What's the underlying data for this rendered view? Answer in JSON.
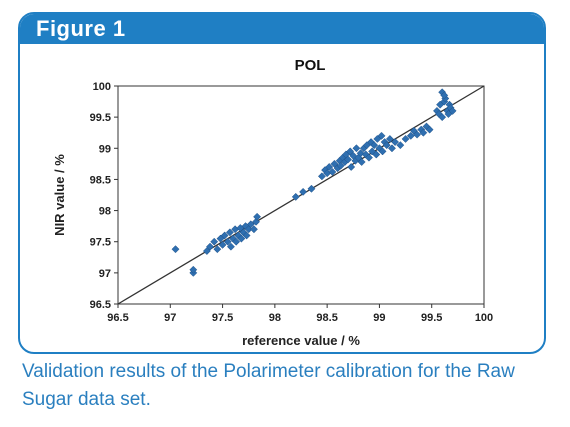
{
  "figure": {
    "label": "Figure 1",
    "caption": "Validation results of the Polarimeter calibration for the Raw Sugar data set.",
    "accent_color": "#1f7fc4"
  },
  "chart_data": {
    "type": "scatter",
    "title": "POL",
    "xlabel": "reference value / %",
    "ylabel": "NIR value / %",
    "xlim": [
      96.5,
      100
    ],
    "ylim": [
      96.5,
      100
    ],
    "xticks": [
      "96.5",
      "97",
      "97.5",
      "98",
      "98.5",
      "99",
      "99.5",
      "100"
    ],
    "yticks": [
      "96.5",
      "97",
      "97.5",
      "98",
      "98.5",
      "99",
      "99.5",
      "100"
    ],
    "grid": false,
    "legend": "none",
    "marker_color": "#2f6fb0",
    "reference_line": {
      "from": [
        96.5,
        96.5
      ],
      "to": [
        100,
        100
      ]
    },
    "points": [
      [
        97.05,
        97.38
      ],
      [
        97.22,
        97.0
      ],
      [
        97.22,
        97.05
      ],
      [
        97.35,
        97.35
      ],
      [
        97.38,
        97.42
      ],
      [
        97.42,
        97.5
      ],
      [
        97.45,
        97.38
      ],
      [
        97.48,
        97.55
      ],
      [
        97.5,
        97.45
      ],
      [
        97.52,
        97.6
      ],
      [
        97.55,
        97.5
      ],
      [
        97.57,
        97.65
      ],
      [
        97.58,
        97.42
      ],
      [
        97.6,
        97.55
      ],
      [
        97.62,
        97.7
      ],
      [
        97.63,
        97.5
      ],
      [
        97.65,
        97.6
      ],
      [
        97.67,
        97.72
      ],
      [
        97.68,
        97.55
      ],
      [
        97.7,
        97.65
      ],
      [
        97.72,
        97.75
      ],
      [
        97.73,
        97.6
      ],
      [
        97.75,
        97.7
      ],
      [
        97.77,
        97.78
      ],
      [
        97.8,
        97.7
      ],
      [
        97.82,
        97.82
      ],
      [
        97.83,
        97.9
      ],
      [
        98.2,
        98.22
      ],
      [
        98.27,
        98.3
      ],
      [
        98.35,
        98.35
      ],
      [
        98.45,
        98.55
      ],
      [
        98.48,
        98.65
      ],
      [
        98.5,
        98.6
      ],
      [
        98.52,
        98.7
      ],
      [
        98.55,
        98.62
      ],
      [
        98.57,
        98.75
      ],
      [
        98.6,
        98.68
      ],
      [
        98.62,
        98.8
      ],
      [
        98.63,
        98.72
      ],
      [
        98.65,
        98.85
      ],
      [
        98.67,
        98.78
      ],
      [
        98.68,
        98.9
      ],
      [
        98.7,
        98.82
      ],
      [
        98.72,
        98.95
      ],
      [
        98.73,
        98.7
      ],
      [
        98.75,
        98.88
      ],
      [
        98.77,
        98.8
      ],
      [
        98.78,
        99.0
      ],
      [
        98.8,
        98.85
      ],
      [
        98.82,
        98.92
      ],
      [
        98.83,
        98.78
      ],
      [
        98.85,
        99.0
      ],
      [
        98.87,
        98.9
      ],
      [
        98.88,
        99.05
      ],
      [
        98.9,
        98.85
      ],
      [
        98.92,
        99.1
      ],
      [
        98.93,
        98.95
      ],
      [
        98.95,
        99.05
      ],
      [
        98.97,
        98.9
      ],
      [
        98.98,
        99.15
      ],
      [
        99.0,
        99.0
      ],
      [
        99.02,
        99.2
      ],
      [
        99.03,
        98.95
      ],
      [
        99.05,
        99.1
      ],
      [
        99.07,
        99.05
      ],
      [
        99.1,
        99.15
      ],
      [
        99.12,
        99.0
      ],
      [
        99.15,
        99.1
      ],
      [
        99.2,
        99.05
      ],
      [
        99.25,
        99.15
      ],
      [
        99.3,
        99.2
      ],
      [
        99.33,
        99.28
      ],
      [
        99.36,
        99.22
      ],
      [
        99.4,
        99.3
      ],
      [
        99.42,
        99.25
      ],
      [
        99.45,
        99.35
      ],
      [
        99.48,
        99.3
      ],
      [
        99.55,
        99.6
      ],
      [
        99.57,
        99.55
      ],
      [
        99.58,
        99.7
      ],
      [
        99.6,
        99.5
      ],
      [
        99.62,
        99.75
      ],
      [
        99.63,
        99.8
      ],
      [
        99.65,
        99.6
      ],
      [
        99.66,
        99.55
      ],
      [
        99.67,
        99.7
      ],
      [
        99.68,
        99.65
      ],
      [
        99.7,
        99.6
      ],
      [
        99.6,
        99.9
      ],
      [
        99.62,
        99.85
      ]
    ]
  }
}
